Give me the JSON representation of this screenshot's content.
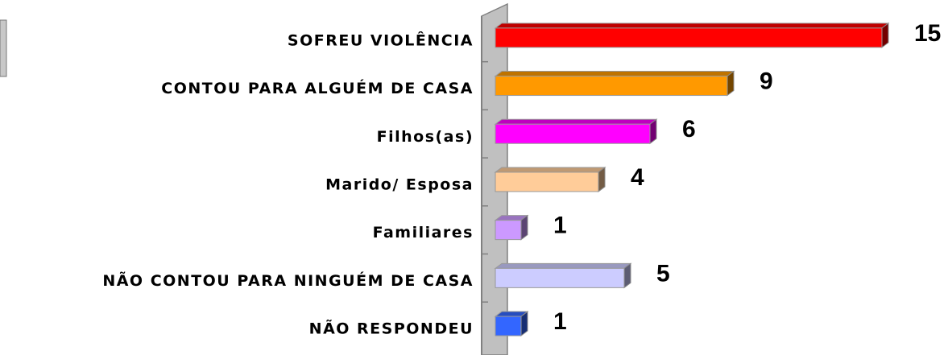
{
  "chart_data": {
    "type": "bar",
    "orientation": "horizontal",
    "categories": [
      "SOFREU VIOLÊNCIA",
      "CONTOU PARA ALGUÉM DE CASA",
      "Filhos(as)",
      "Marido/ Esposa",
      "Familiares",
      "NÃO CONTOU PARA NINGUÉM DE CASA",
      "NÃO RESPONDEU"
    ],
    "values": [
      15,
      9,
      6,
      4,
      1,
      5,
      1
    ],
    "colors": [
      "#ff0000",
      "#ff9900",
      "#ff00ff",
      "#ffcc99",
      "#cc99ff",
      "#ccccff",
      "#3366ff"
    ]
  }
}
